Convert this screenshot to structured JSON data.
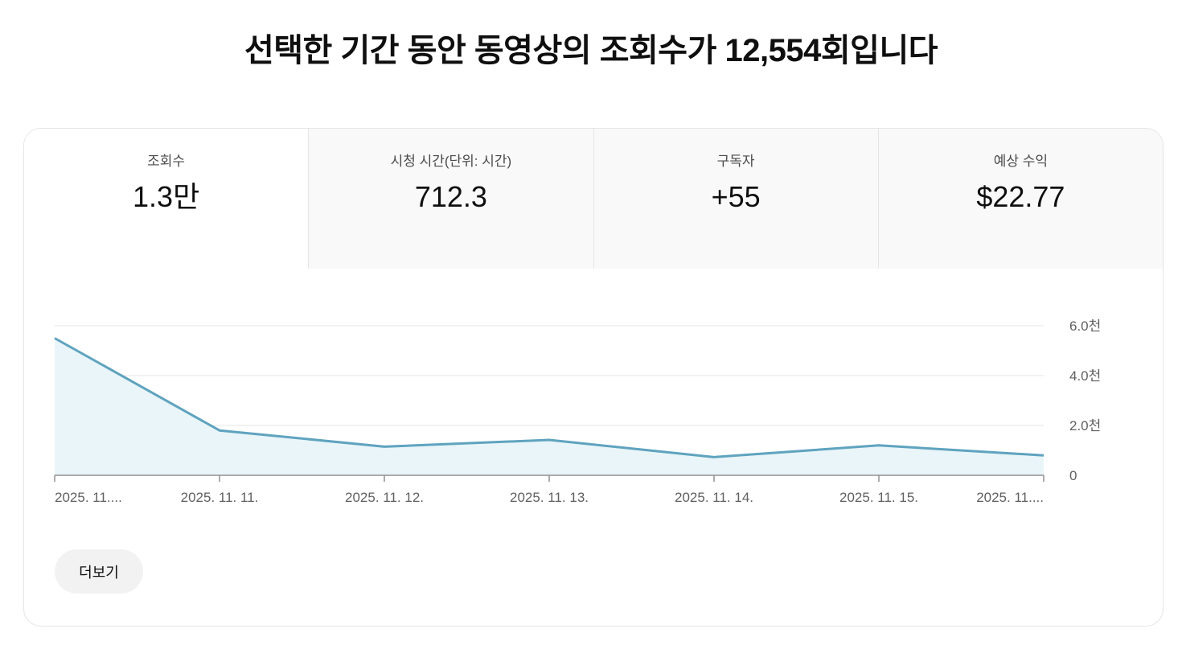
{
  "headline": {
    "prefix": "선택한 기간 동안 동영상의 조회수가 ",
    "count": "12,554",
    "suffix": "회입니다"
  },
  "tabs": [
    {
      "label": "조회수",
      "value": "1.3만",
      "active": true
    },
    {
      "label": "시청 시간(단위: 시간)",
      "value": "712.3",
      "active": false
    },
    {
      "label": "구독자",
      "value": "+55",
      "active": false
    },
    {
      "label": "예상 수익",
      "value": "$22.77",
      "active": false
    }
  ],
  "more_button": {
    "label": "더보기"
  },
  "colors": {
    "line": "#5fa3bf",
    "fill": "#e9f5f8",
    "grid": "#e5e5e5",
    "axis": "#909090",
    "text": "#606060"
  },
  "chart_data": {
    "type": "area",
    "x_tick_labels": [
      "2025. 11....",
      "2025. 11. 11.",
      "2025. 11. 12.",
      "2025. 11. 13.",
      "2025. 11. 14.",
      "2025. 11. 15.",
      "2025. 11...."
    ],
    "values": [
      5500,
      1800,
      1150,
      1420,
      730,
      1200,
      800
    ],
    "y_ticks": [
      0,
      2000,
      4000,
      6000
    ],
    "y_tick_labels": [
      "0",
      "2.0천",
      "4.0천",
      "6.0천"
    ],
    "ylim": [
      0,
      6000
    ],
    "y_axis_position": "right",
    "grid": true
  }
}
